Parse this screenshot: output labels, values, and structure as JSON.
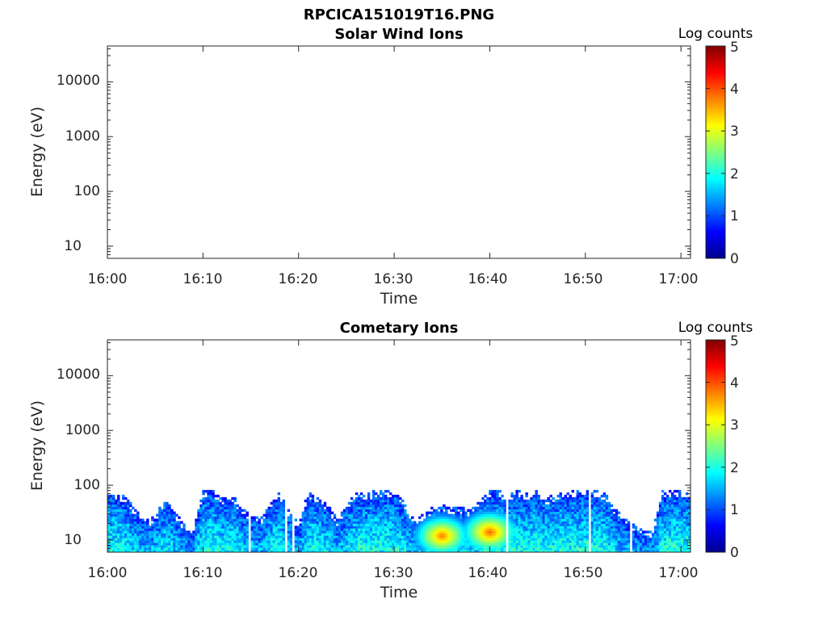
{
  "figure_title": "RPCICA151019T16.PNG",
  "colorbar_label": "Log counts",
  "colorbar_ticks": [
    "0",
    "1",
    "2",
    "3",
    "4",
    "5"
  ],
  "chart_data": [
    {
      "type": "heatmap",
      "title": "Solar Wind Ions",
      "xlabel": "Time",
      "ylabel": "Energy (eV)",
      "x_ticks": [
        "16:00",
        "16:10",
        "16:20",
        "16:30",
        "16:40",
        "16:50",
        "17:00"
      ],
      "xlim": [
        "16:00",
        "17:01"
      ],
      "y_ticks": [
        "10",
        "100",
        "1000",
        "10000"
      ],
      "ylim": [
        6,
        45000
      ],
      "y_scale": "log",
      "colorbar": {
        "label": "Log counts",
        "range": [
          0,
          5
        ],
        "colormap": "jet"
      },
      "data": []
    },
    {
      "type": "heatmap",
      "title": "Cometary Ions",
      "xlabel": "Time",
      "ylabel": "Energy (eV)",
      "x_ticks": [
        "16:00",
        "16:10",
        "16:20",
        "16:30",
        "16:40",
        "16:50",
        "17:00"
      ],
      "xlim": [
        "16:00",
        "17:01"
      ],
      "y_ticks": [
        "10",
        "100",
        "1000",
        "10000"
      ],
      "ylim": [
        6,
        45000
      ],
      "y_scale": "log",
      "colorbar": {
        "label": "Log counts",
        "range": [
          0,
          5
        ],
        "colormap": "jet"
      },
      "envelope_top_eV_by_minute": [
        {
          "t": "16:00",
          "top_eV": 80
        },
        {
          "t": "16:01",
          "top_eV": 75
        },
        {
          "t": "16:02",
          "top_eV": 60
        },
        {
          "t": "16:03",
          "top_eV": 35
        },
        {
          "t": "16:04",
          "top_eV": 22
        },
        {
          "t": "16:05",
          "top_eV": 30
        },
        {
          "t": "16:06",
          "top_eV": 55
        },
        {
          "t": "16:07",
          "top_eV": 35
        },
        {
          "t": "16:08",
          "top_eV": 20
        },
        {
          "t": "16:09",
          "top_eV": 15
        },
        {
          "t": "16:10",
          "top_eV": 80
        },
        {
          "t": "16:11",
          "top_eV": 80
        },
        {
          "t": "16:12",
          "top_eV": 60
        },
        {
          "t": "16:13",
          "top_eV": 70
        },
        {
          "t": "16:14",
          "top_eV": 40
        },
        {
          "t": "16:15",
          "top_eV": 30
        },
        {
          "t": "16:16",
          "top_eV": 25
        },
        {
          "t": "16:17",
          "top_eV": 45
        },
        {
          "t": "16:18",
          "top_eV": 80
        },
        {
          "t": "16:19",
          "top_eV": 35
        },
        {
          "t": "16:20",
          "top_eV": 20
        },
        {
          "t": "16:21",
          "top_eV": 80
        },
        {
          "t": "16:22",
          "top_eV": 60
        },
        {
          "t": "16:23",
          "top_eV": 45
        },
        {
          "t": "16:24",
          "top_eV": 25
        },
        {
          "t": "16:25",
          "top_eV": 40
        },
        {
          "t": "16:26",
          "top_eV": 80
        },
        {
          "t": "16:27",
          "top_eV": 70
        },
        {
          "t": "16:28",
          "top_eV": 80
        },
        {
          "t": "16:29",
          "top_eV": 80
        },
        {
          "t": "16:30",
          "top_eV": 80
        },
        {
          "t": "16:31",
          "top_eV": 50
        },
        {
          "t": "16:32",
          "top_eV": 25
        },
        {
          "t": "16:33",
          "top_eV": 30
        },
        {
          "t": "16:34",
          "top_eV": 40
        },
        {
          "t": "16:35",
          "top_eV": 45
        },
        {
          "t": "16:36",
          "top_eV": 40
        },
        {
          "t": "16:37",
          "top_eV": 40
        },
        {
          "t": "16:38",
          "top_eV": 35
        },
        {
          "t": "16:39",
          "top_eV": 60
        },
        {
          "t": "16:40",
          "top_eV": 80
        },
        {
          "t": "16:41",
          "top_eV": 80
        },
        {
          "t": "16:42",
          "top_eV": 70
        },
        {
          "t": "16:43",
          "top_eV": 80
        },
        {
          "t": "16:44",
          "top_eV": 70
        },
        {
          "t": "16:45",
          "top_eV": 80
        },
        {
          "t": "16:46",
          "top_eV": 60
        },
        {
          "t": "16:47",
          "top_eV": 75
        },
        {
          "t": "16:48",
          "top_eV": 80
        },
        {
          "t": "16:49",
          "top_eV": 80
        },
        {
          "t": "16:50",
          "top_eV": 80
        },
        {
          "t": "16:51",
          "top_eV": 80
        },
        {
          "t": "16:52",
          "top_eV": 75
        },
        {
          "t": "16:53",
          "top_eV": 40
        },
        {
          "t": "16:54",
          "top_eV": 25
        },
        {
          "t": "16:55",
          "top_eV": 20
        },
        {
          "t": "16:56",
          "top_eV": 15
        },
        {
          "t": "16:57",
          "top_eV": 15
        },
        {
          "t": "16:58",
          "top_eV": 80
        },
        {
          "t": "16:59",
          "top_eV": 80
        },
        {
          "t": "17:00",
          "top_eV": 80
        },
        {
          "t": "17:01",
          "top_eV": 70
        }
      ],
      "hot_spots": [
        {
          "t": "16:35",
          "energy_eV": 12,
          "log_counts": 3.8
        },
        {
          "t": "16:40",
          "energy_eV": 14,
          "log_counts": 3.9
        }
      ]
    }
  ]
}
